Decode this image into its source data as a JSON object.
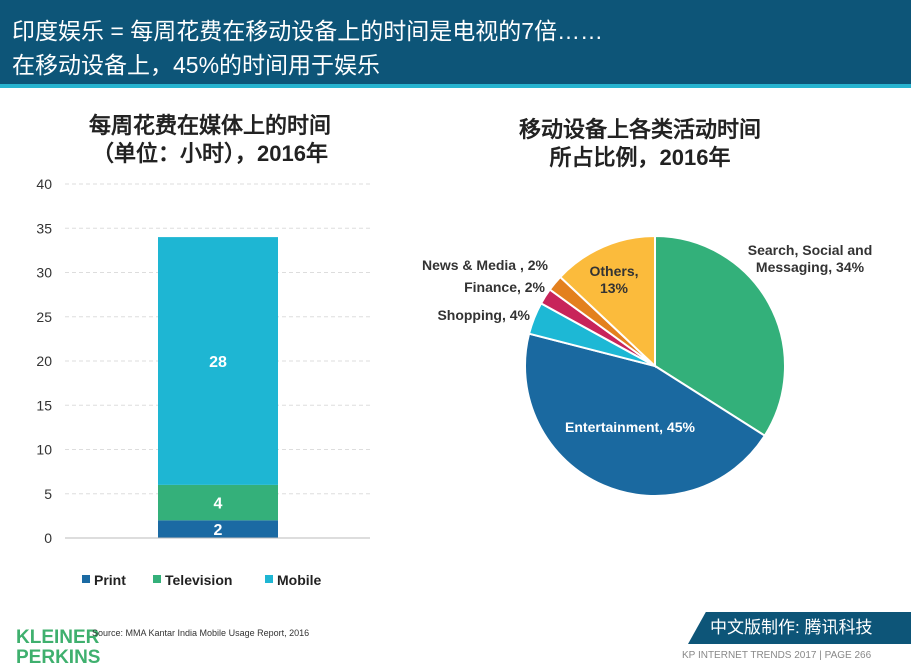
{
  "header": {
    "line1": "印度娱乐 = 每周花费在移动设备上的时间是电视的7倍……",
    "line2": "在移动设备上，45%的时间用于娱乐"
  },
  "chart_data": [
    {
      "type": "bar",
      "stacked": true,
      "title": "每周花费在媒体上的时间（单位：小时），2016年",
      "title_line1": "每周花费在媒体上的时间",
      "title_line2": "（单位：小时），2016年",
      "ylim": [
        0,
        40
      ],
      "yticks": [
        0,
        5,
        10,
        15,
        20,
        25,
        30,
        35,
        40
      ],
      "grid": true,
      "legend": "bottom",
      "series": [
        {
          "name": "Print",
          "values": [
            2
          ],
          "color": "#1b6aa3"
        },
        {
          "name": "Television",
          "values": [
            4
          ],
          "color": "#34b07a"
        },
        {
          "name": "Mobile",
          "values": [
            28
          ],
          "color": "#1eb6d3"
        }
      ]
    },
    {
      "type": "pie",
      "title": "移动设备上各类活动时间所占比例，2016年",
      "title_line1": "移动设备上各类活动时间",
      "title_line2": "所占比例，2016年",
      "slices": [
        {
          "label": "Search, Social and Messaging, 34%",
          "value": 34,
          "color": "#33b07a"
        },
        {
          "label": "Entertainment, 45%",
          "value": 45,
          "color": "#1a69a0"
        },
        {
          "label": "Shopping, 4%",
          "value": 4,
          "color": "#1db8d5"
        },
        {
          "label": "Finance, 2%",
          "value": 2,
          "color": "#c8245a"
        },
        {
          "label": "News & Media , 2%",
          "value": 2,
          "color": "#e3801e"
        },
        {
          "label": "Others, 13%",
          "value": 13,
          "color": "#fbbb3c"
        }
      ]
    }
  ],
  "footer": {
    "source": "Source: MMA Kantar India Mobile Usage Report, 2016",
    "logo": "KLEINER PERKINS",
    "badge": "中文版制作: 腾讯科技",
    "trends": "KP INTERNET TRENDS 2017  |  PAGE 266"
  }
}
